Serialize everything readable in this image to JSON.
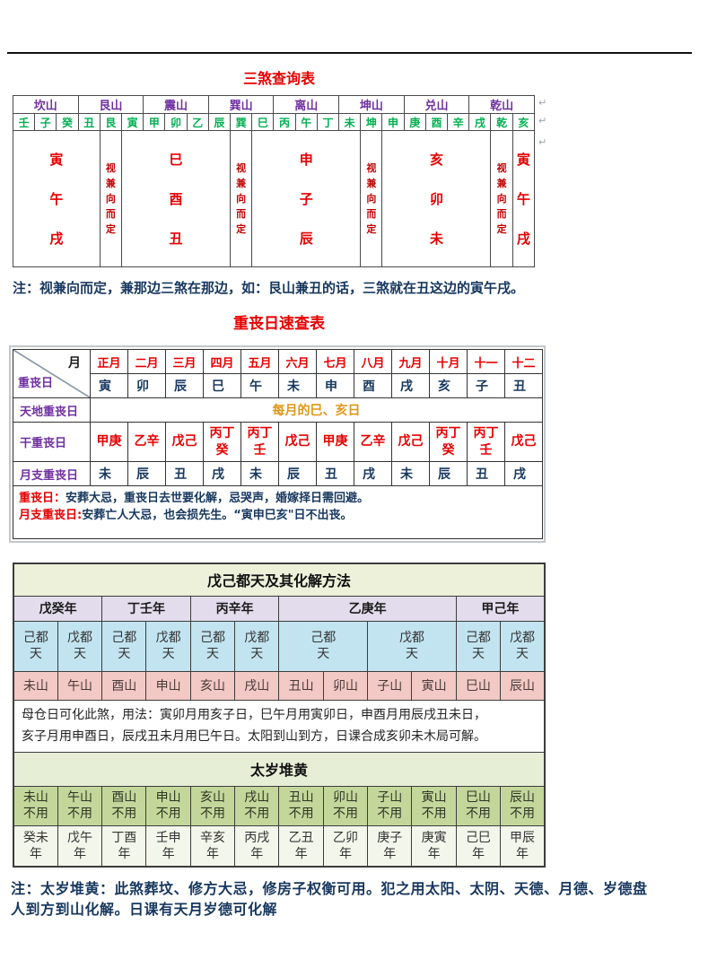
{
  "page": {
    "title_sansha": "三煞查询表",
    "sansha_note": "注：视兼向而定，兼那边三煞在那边，如：艮山兼丑的话，三煞就在丑这边的寅午戌。",
    "title_chongsang": "重丧日速查表",
    "bottom_note": "注：太岁堆黄：此煞葬坟、修方大忌，修房子权衡可用。犯之用太阳、太阴、天德、月德、岁德盘\n人到方到山化解。日课有天月岁德可化解",
    "pilcrow": "↵"
  },
  "colors": {
    "title_red": "#e60000",
    "mountain_purple": "#7030a0",
    "branch_green": "#00b050",
    "sha_note_maroon": "#c00000",
    "note_navy": "#17375e",
    "tiandi_orange": "#dd9818",
    "wuji_title_bg": "#eef1da",
    "year_row_bg": "#e2dcec",
    "dutian_row_bg": "#c2e4f0",
    "mountain_row_bg": "#f2c9c5",
    "taisui_header_bg": "#e7eed6",
    "taisui_mountain_bg": "#c4d79b",
    "taisui_year_bg": "#f3f6ea"
  },
  "sansha_table": {
    "mountains": [
      "坎山",
      "艮山",
      "震山",
      "巽山",
      "离山",
      "坤山",
      "兑山",
      "乾山"
    ],
    "branches": [
      "壬",
      "子",
      "癸",
      "丑",
      "艮",
      "寅",
      "甲",
      "卯",
      "乙",
      "辰",
      "巽",
      "巳",
      "丙",
      "午",
      "丁",
      "未",
      "坤",
      "申",
      "庚",
      "酉",
      "辛",
      "戌",
      "乾",
      "亥"
    ],
    "body_cells": [
      "寅午戌",
      "视兼向而定",
      "巳酉丑",
      "视兼向而定",
      "申子辰",
      "视兼向而定",
      "亥卯未",
      "视兼向而定",
      "寅午戌"
    ]
  },
  "chongsang_table": {
    "corner_top": "月",
    "corner_bottom": "重丧日",
    "months": [
      "正月",
      "二月",
      "三月",
      "四月",
      "五月",
      "六月",
      "七月",
      "八月",
      "九月",
      "十月",
      "十一",
      "十二"
    ],
    "month_branches": [
      "寅",
      "卯",
      "辰",
      "巳",
      "午",
      "未",
      "申",
      "酉",
      "戌",
      "亥",
      "子",
      "丑"
    ],
    "tiandi_label": "天地重丧日",
    "tiandi_value": "每月的巳、亥日",
    "gan_label": "干重丧日",
    "gan_values": [
      "甲庚",
      "乙辛",
      "戊己",
      "丙丁癸",
      "丙丁壬",
      "戊己",
      "甲庚",
      "乙辛",
      "戊己",
      "丙丁癸",
      "丙丁壬",
      "戊己"
    ],
    "yuezhi_label": "月支重丧日",
    "yuezhi_values": [
      "未",
      "辰",
      "丑",
      "戌",
      "未",
      "辰",
      "丑",
      "戌",
      "未",
      "辰",
      "丑",
      "戌"
    ],
    "note1_label": "重丧日：",
    "note1_text": "安葬大忌，重丧日去世要化解，忌哭声，婚嫁择日需回避。",
    "note2_label": "月支重丧日:",
    "note2_text": "安葬亡人大忌，也会损先生。“寅申巳亥\"日不出丧。"
  },
  "wuji_table": {
    "title": "戊己都天及其化解方法",
    "years": [
      "戊癸年",
      "丁壬年",
      "丙辛年",
      "乙庚年",
      "甲己年"
    ],
    "dutian": [
      "己都天",
      "戊都天",
      "己都天",
      "戊都天",
      "己都天",
      "戊都天",
      "己都天",
      "戊都天",
      "己都天",
      "戊都天"
    ],
    "mountains": [
      "未山",
      "午山",
      "酉山",
      "申山",
      "亥山",
      "戌山",
      "丑山",
      "卯山",
      "子山",
      "寅山",
      "巳山",
      "辰山"
    ],
    "paragraph": "母仓日可化此煞，用法：寅卯月用亥子日，巳午月用寅卯日，申酉月用辰戌丑未日，\n亥子月用申酉日，辰戌丑未月用巳午日。太阳到山到方，日课合成亥卯未木局可解。",
    "taisui_title": "太岁堆黄",
    "taisui_mountains": [
      "未山不用",
      "午山不用",
      "酉山不用",
      "申山不用",
      "亥山不用",
      "戌山不用",
      "丑山不用",
      "卯山不用",
      "子山不用",
      "寅山不用",
      "巳山不用",
      "辰山不用"
    ],
    "taisui_years": [
      "癸未年",
      "戊午年",
      "丁酉年",
      "壬申年",
      "辛亥年",
      "丙戌年",
      "乙丑年",
      "乙卯年",
      "庚子年",
      "庚寅年",
      "己巳年",
      "甲辰年"
    ]
  }
}
